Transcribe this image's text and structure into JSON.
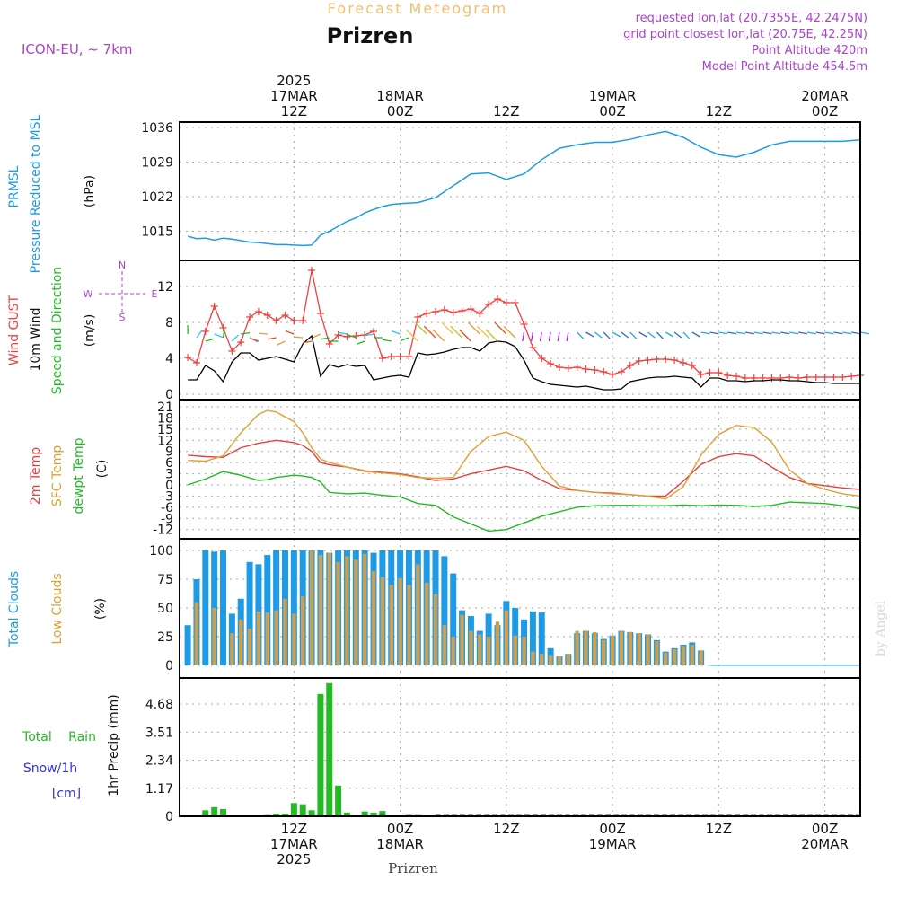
{
  "header": {
    "subtitle": "Forecast Meteogram",
    "location": "Prizren",
    "model": "ICON-EU, ~ 7km",
    "requested": "requested lon,lat (20.7355E, 42.2475N)",
    "gridpoint": "grid point closest lon,lat (20.75E, 42.25N)",
    "point_altitude": "Point Altitude 420m",
    "model_altitude": "Model Point Altitude 454.5m",
    "footer_location": "Prizren",
    "credit": "by Angel"
  },
  "time_axis": {
    "top_ticks": [
      {
        "h": 12,
        "lines": [
          "2025",
          "17MAR",
          "12Z"
        ]
      },
      {
        "h": 24,
        "lines": [
          "18MAR",
          "00Z"
        ]
      },
      {
        "h": 36,
        "lines": [
          "12Z"
        ]
      },
      {
        "h": 48,
        "lines": [
          "19MAR",
          "00Z"
        ]
      },
      {
        "h": 60,
        "lines": [
          "12Z"
        ]
      },
      {
        "h": 72,
        "lines": [
          "20MAR",
          "00Z"
        ]
      }
    ],
    "bottom_ticks": [
      {
        "h": 12,
        "lines": [
          "12Z",
          "17MAR",
          "2025"
        ]
      },
      {
        "h": 24,
        "lines": [
          "00Z",
          "18MAR"
        ]
      },
      {
        "h": 36,
        "lines": [
          "12Z"
        ]
      },
      {
        "h": 48,
        "lines": [
          "00Z",
          "19MAR"
        ]
      },
      {
        "h": 60,
        "lines": [
          "12Z"
        ]
      },
      {
        "h": 72,
        "lines": [
          "00Z",
          "20MAR"
        ]
      }
    ]
  },
  "panels": {
    "pressure": {
      "labels": [
        "PRMSL",
        "Pressure Reduced to MSL"
      ],
      "unit": "(hPa)",
      "ticks": [
        "1036",
        "1029",
        "1022",
        "1015"
      ]
    },
    "wind": {
      "labels": [
        "Wind GUST",
        "10m Wind",
        "Speed and Direction"
      ],
      "unit": "(m/s)",
      "ticks": [
        "12",
        "8",
        "4",
        "0"
      ],
      "compass": {
        "n": "N",
        "s": "S",
        "w": "W",
        "e": "E"
      }
    },
    "temp": {
      "labels": [
        "2m Temp",
        "SFC Temp",
        "dewpt Temp"
      ],
      "unit": "(C)",
      "ticks": [
        "21",
        "18",
        "15",
        "12",
        "9",
        "6",
        "3",
        "0",
        "-3",
        "-6",
        "-9",
        "-12"
      ]
    },
    "clouds": {
      "labels": [
        "Total Clouds",
        "Low Clouds"
      ],
      "unit": "(%)",
      "ticks": [
        "100",
        "75",
        "50",
        "25",
        "0"
      ]
    },
    "precip": {
      "labels": [
        "Total Rain",
        "Snow/1h",
        "[cm]"
      ],
      "unit": "1hr Precip (mm)",
      "ticks": [
        "4.68",
        "3.51",
        "2.34",
        "1.17",
        "0"
      ]
    }
  },
  "colors": {
    "pressure": "#1e9be6",
    "gust": "#f04040",
    "wind": "#000000",
    "dir_label": "#22bb22",
    "t2m": "#e84040",
    "sfc": "#e0a030",
    "dew": "#22bb22",
    "total_cloud": "#1e9be6",
    "low_cloud": "#cca050",
    "rain": "#22bb22",
    "snow": "#3333dd",
    "purple": "#aa44cc",
    "title_orange": "#f0c070"
  },
  "chart_data": [
    {
      "type": "line",
      "name": "PRMSL",
      "x_hours": [
        0,
        1,
        2,
        3,
        4,
        5,
        6,
        7,
        8,
        9,
        10,
        11,
        12,
        13,
        14,
        15,
        16,
        17,
        18,
        19,
        20,
        21,
        22,
        23,
        24,
        26,
        28,
        30,
        32,
        34,
        36,
        38,
        40,
        42,
        44,
        46,
        48,
        50,
        52,
        54,
        56,
        58,
        60,
        62,
        64,
        66,
        68,
        70,
        72,
        74,
        76
      ],
      "values": [
        1014,
        1013.5,
        1013.6,
        1013.2,
        1013.6,
        1013.4,
        1013.1,
        1012.8,
        1012.7,
        1012.5,
        1012.3,
        1012.3,
        1012.2,
        1012.1,
        1012.2,
        1014.2,
        1015,
        1016,
        1017,
        1017.7,
        1018.7,
        1019.4,
        1020,
        1020.4,
        1020.6,
        1020.8,
        1021.8,
        1024.2,
        1026.6,
        1026.8,
        1025.5,
        1026.6,
        1029.5,
        1031.8,
        1032.5,
        1033,
        1033,
        1033.6,
        1034.5,
        1035.2,
        1034,
        1032,
        1030.5,
        1030,
        1031,
        1032.5,
        1033.2,
        1033.2,
        1033.2,
        1033.2,
        1033.5
      ],
      "ylim": [
        1010,
        1037.5
      ]
    },
    {
      "type": "line",
      "name": "Wind GUST",
      "x_hours": [
        0,
        1,
        2,
        3,
        4,
        5,
        6,
        7,
        8,
        9,
        10,
        11,
        12,
        13,
        14,
        15,
        16,
        17,
        18,
        19,
        20,
        21,
        22,
        23,
        24,
        25,
        26,
        27,
        28,
        29,
        30,
        31,
        32,
        33,
        34,
        35,
        36,
        37,
        38,
        39,
        40,
        41,
        42,
        43,
        44,
        45,
        46,
        47,
        48,
        49,
        50,
        51,
        52,
        53,
        54,
        55,
        56,
        57,
        58,
        59,
        60,
        61,
        62,
        63,
        64,
        65,
        66,
        67,
        68,
        69,
        70,
        71,
        72,
        73,
        74,
        75,
        76
      ],
      "values": [
        4.1,
        3.5,
        7,
        9.8,
        7.4,
        4.8,
        5.8,
        8.6,
        9.2,
        8.8,
        8.2,
        8.8,
        8.2,
        8.2,
        13.8,
        9,
        5.6,
        6.6,
        6.4,
        6.5,
        6.6,
        7,
        4,
        4.2,
        4.2,
        4.2,
        8.6,
        9,
        9.2,
        9.4,
        9.1,
        9.3,
        9.5,
        9,
        10,
        10.6,
        10.2,
        10.2,
        7.8,
        5.2,
        4,
        3.4,
        3,
        2.9,
        3,
        2.8,
        2.7,
        2.5,
        2.2,
        2.5,
        3.2,
        3.7,
        3.8,
        3.9,
        3.9,
        3.8,
        3.5,
        3.2,
        2.2,
        2.4,
        2.4,
        2.1,
        2,
        1.8,
        1.8,
        1.8,
        1.8,
        1.8,
        1.9,
        1.8,
        1.9,
        1.9,
        1.9,
        1.9,
        1.9,
        2,
        2.1
      ],
      "ylim": [
        0,
        14.5
      ]
    },
    {
      "type": "line",
      "name": "10m Wind",
      "x_hours": [
        0,
        1,
        2,
        3,
        4,
        5,
        6,
        7,
        8,
        9,
        10,
        11,
        12,
        13,
        14,
        15,
        16,
        17,
        18,
        19,
        20,
        21,
        22,
        23,
        24,
        25,
        26,
        27,
        28,
        29,
        30,
        31,
        32,
        33,
        34,
        35,
        36,
        37,
        38,
        39,
        40,
        41,
        42,
        43,
        44,
        45,
        46,
        47,
        48,
        49,
        50,
        51,
        52,
        53,
        54,
        55,
        56,
        57,
        58,
        59,
        60,
        61,
        62,
        63,
        64,
        65,
        66,
        67,
        68,
        69,
        70,
        71,
        72,
        73,
        74,
        75,
        76
      ],
      "values": [
        1.6,
        1.6,
        3.2,
        2.6,
        1.4,
        3.6,
        4.6,
        4.6,
        3.8,
        4,
        4.2,
        3.9,
        3.6,
        5.6,
        6.5,
        2,
        3.3,
        3,
        3.3,
        3.1,
        3.2,
        1.6,
        1.8,
        2,
        2.1,
        1.9,
        4.6,
        4.4,
        4.5,
        4.7,
        5,
        5.2,
        5.2,
        4.8,
        5.7,
        5.9,
        5.8,
        5.3,
        3.8,
        1.8,
        1.4,
        1.1,
        1,
        0.9,
        0.8,
        0.9,
        0.7,
        0.5,
        0.5,
        0.6,
        1.4,
        1.6,
        1.8,
        1.9,
        1.9,
        2,
        1.9,
        1.8,
        0.8,
        1.8,
        1.8,
        1.5,
        1.5,
        1.4,
        1.5,
        1.5,
        1.6,
        1.6,
        1.5,
        1.5,
        1.4,
        1.3,
        1.3,
        1.2,
        1.2,
        1.2,
        1.2
      ],
      "ylim": [
        0,
        14.5
      ]
    },
    {
      "type": "line",
      "name": "Temperatures",
      "x_hours": [
        0,
        2,
        4,
        6,
        8,
        9,
        10,
        12,
        13,
        14,
        15,
        16,
        18,
        20,
        22,
        24,
        26,
        28,
        30,
        32,
        34,
        36,
        38,
        40,
        42,
        44,
        46,
        48,
        50,
        52,
        54,
        56,
        58,
        60,
        62,
        64,
        66,
        68,
        70,
        72,
        74,
        76
      ],
      "series": [
        {
          "name": "2m Temp",
          "values": [
            8,
            7.6,
            7.4,
            10,
            11.2,
            11.6,
            12,
            11.4,
            10.6,
            9,
            6,
            5.4,
            4.8,
            3.8,
            3.4,
            3,
            2.2,
            1.2,
            1.6,
            3,
            4,
            5,
            3.8,
            1.2,
            -1,
            -1.5,
            -2,
            -2.2,
            -2.6,
            -3,
            -3,
            1,
            5.5,
            7.6,
            8.4,
            7.8,
            4.8,
            2,
            0.4,
            -0.2,
            -0.8,
            -1.2
          ]
        },
        {
          "name": "SFC Temp",
          "values": [
            6.6,
            6.4,
            7.8,
            14,
            19,
            20,
            19.6,
            17,
            14,
            10,
            7,
            6,
            4.8,
            3.6,
            3.2,
            2.8,
            2,
            1.8,
            2,
            9,
            13,
            14.2,
            12,
            5,
            -0.3,
            -1.5,
            -2,
            -2.4,
            -2.6,
            -3,
            -3.8,
            -0.5,
            8,
            13.6,
            16,
            15.4,
            11.5,
            4,
            0.4,
            -1.2,
            -2.4,
            -3
          ]
        },
        {
          "name": "dewpt Temp",
          "values": [
            0,
            1.6,
            3.6,
            2.6,
            1.2,
            1.4,
            2,
            2.6,
            2.4,
            2,
            0.8,
            -2,
            -2.4,
            -2.2,
            -2.8,
            -3.2,
            -5,
            -5.5,
            -8.6,
            -10.5,
            -12.4,
            -12,
            -10.2,
            -8.4,
            -7.2,
            -6,
            -5.6,
            -5.5,
            -5.5,
            -5.6,
            -5.6,
            -5.4,
            -5.6,
            -5.4,
            -5.5,
            -5.8,
            -5.5,
            -4.6,
            -4.8,
            -5,
            -5.6,
            -6.4
          ]
        }
      ],
      "ylim": [
        -13,
        23
      ]
    },
    {
      "type": "bar",
      "name": "Clouds",
      "x_hours": [
        0,
        1,
        2,
        3,
        4,
        5,
        6,
        7,
        8,
        9,
        10,
        11,
        12,
        13,
        14,
        15,
        16,
        17,
        18,
        19,
        20,
        21,
        22,
        23,
        24,
        25,
        26,
        27,
        28,
        29,
        30,
        31,
        32,
        33,
        34,
        35,
        36,
        37,
        38,
        39,
        40,
        41,
        42,
        43,
        44,
        45,
        46,
        47,
        48,
        49,
        50,
        51,
        52,
        53,
        54,
        55,
        56,
        57,
        58,
        59,
        60,
        61,
        62,
        63,
        64,
        65,
        66,
        67,
        68,
        69,
        70,
        71,
        72,
        73,
        74,
        75,
        76
      ],
      "series": [
        {
          "name": "Total Clouds",
          "values": [
            35,
            75,
            100,
            99,
            100,
            45,
            58,
            90,
            88,
            96,
            100,
            100,
            100,
            100,
            100,
            100,
            98,
            100,
            100,
            100,
            100,
            98,
            100,
            100,
            100,
            100,
            100,
            100,
            100,
            95,
            80,
            48,
            43,
            30,
            45,
            35,
            56,
            50,
            40,
            47,
            46,
            15,
            8,
            10,
            28,
            30,
            28,
            23,
            26,
            30,
            29,
            28,
            27,
            22,
            12,
            15,
            18,
            20,
            13,
            0,
            0,
            0,
            0,
            0,
            0,
            0,
            0,
            0,
            0,
            0,
            0,
            0,
            0,
            0,
            0,
            0,
            0
          ]
        },
        {
          "name": "Low Clouds",
          "values": [
            0,
            55,
            0,
            50,
            0,
            28,
            40,
            32,
            47,
            46,
            48,
            58,
            45,
            60,
            100,
            96,
            98,
            90,
            95,
            92,
            97,
            82,
            77,
            70,
            76,
            70,
            88,
            72,
            62,
            35,
            25,
            44,
            30,
            27,
            25,
            38,
            48,
            26,
            25,
            12,
            10,
            9,
            8,
            10,
            30,
            30,
            29,
            22,
            26,
            30,
            29,
            28,
            27,
            21,
            11,
            14,
            17,
            18,
            13,
            0,
            0,
            0,
            0,
            0,
            0,
            0,
            0,
            0,
            0,
            0,
            0,
            0,
            0,
            0,
            0,
            0,
            0
          ]
        }
      ],
      "ylim": [
        0,
        100
      ]
    },
    {
      "type": "bar",
      "name": "1hr Precip",
      "x_hours": [
        0,
        1,
        2,
        3,
        4,
        5,
        6,
        7,
        8,
        9,
        10,
        11,
        12,
        13,
        14,
        15,
        16,
        17,
        18,
        19,
        20,
        21,
        22,
        23,
        24,
        25,
        26,
        27,
        28,
        29
      ],
      "series": [
        {
          "name": "Total Rain",
          "values": [
            0,
            0,
            0.25,
            0.38,
            0.3,
            0,
            0,
            0,
            0,
            0.05,
            0.1,
            0.1,
            0.55,
            0.5,
            0.25,
            5.1,
            5.55,
            1.28,
            0.15,
            0,
            0.2,
            0.15,
            0.22,
            0,
            0,
            0,
            0.05,
            0.03,
            0,
            0
          ]
        },
        {
          "name": "Snow/1h",
          "values": [
            0,
            0,
            0,
            0,
            0,
            0,
            0,
            0,
            0,
            0,
            0,
            0,
            0,
            0,
            0,
            0,
            0,
            0,
            0,
            0,
            0,
            0,
            0.05,
            0,
            0,
            0.05,
            0,
            0,
            0,
            0
          ]
        }
      ],
      "ylim": [
        0,
        5.7
      ]
    }
  ]
}
